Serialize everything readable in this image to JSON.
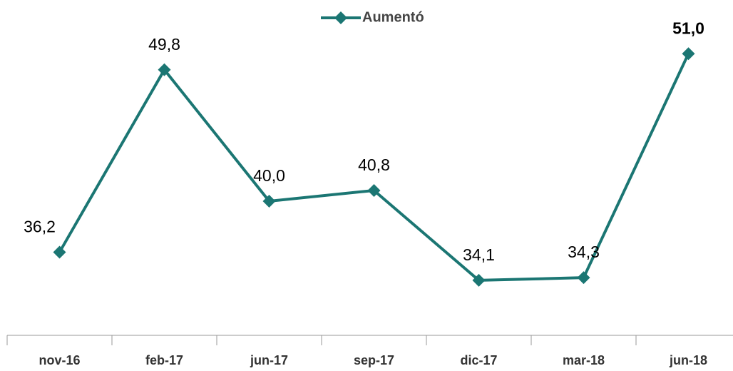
{
  "chart_data": {
    "type": "line",
    "categories": [
      "nov-16",
      "feb-17",
      "jun-17",
      "sep-17",
      "dic-17",
      "mar-18",
      "jun-18"
    ],
    "series": [
      {
        "name": "Aumentó",
        "color": "#1b7673",
        "values": [
          36.2,
          49.8,
          40.0,
          40.8,
          34.1,
          34.3,
          51.0
        ],
        "value_labels": [
          "36,2",
          "49,8",
          "40,0",
          "40,8",
          "34,1",
          "34,3",
          "51,0"
        ]
      }
    ],
    "ylim": [
      30,
      55
    ],
    "legend": "top"
  }
}
